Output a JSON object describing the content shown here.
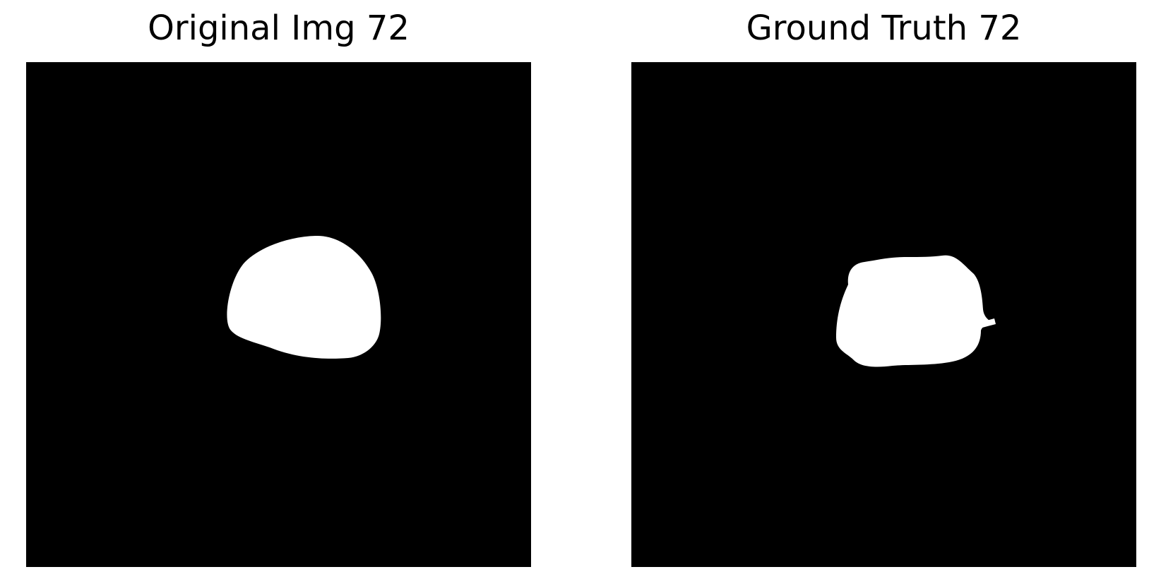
{
  "figure": {
    "panels": [
      {
        "title": "Original Img 72",
        "image": "binary mask: single white blob on black background",
        "colors": {
          "background": "#000000",
          "foreground": "#ffffff"
        }
      },
      {
        "title": "Ground Truth 72",
        "image": "binary mask: single white blob with rough edges on black background",
        "colors": {
          "background": "#000000",
          "foreground": "#ffffff"
        }
      }
    ]
  }
}
